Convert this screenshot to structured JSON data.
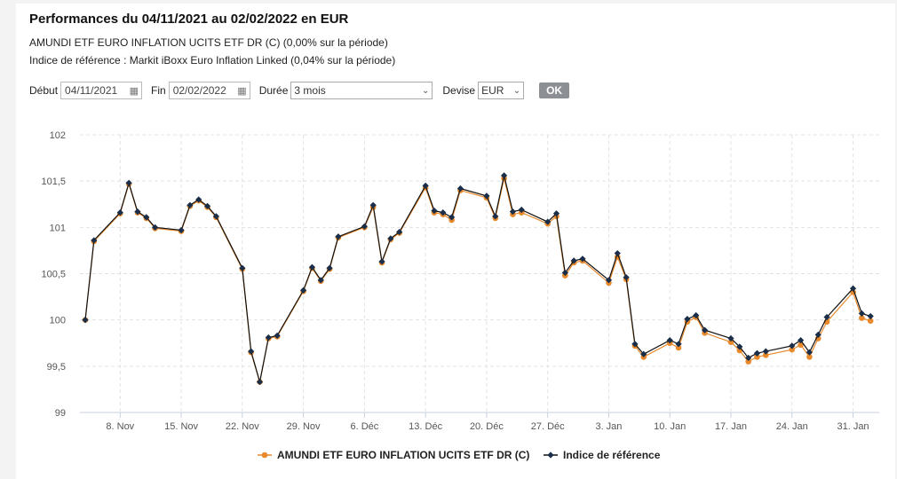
{
  "header": {
    "title": "Performances du 04/11/2021 au 02/02/2022 en EUR",
    "fund_line": "AMUNDI ETF EURO INFLATION UCITS ETF DR (C) (0,00% sur la période)",
    "index_line": "Indice de référence : Markit iBoxx Euro Inflation Linked (0,04% sur la période)"
  },
  "form": {
    "start_label": "Début",
    "start_value": "04/11/2021",
    "end_label": "Fin",
    "end_value": "02/02/2022",
    "duration_label": "Durée",
    "duration_value": "3 mois",
    "currency_label": "Devise",
    "currency_value": "EUR",
    "ok_label": "OK"
  },
  "chart_data": {
    "type": "line",
    "title": "",
    "xlabel": "",
    "ylabel": "",
    "ylim": [
      99,
      102
    ],
    "y_ticks": [
      "102",
      "101,5",
      "101",
      "100,5",
      "100",
      "99,5",
      "99"
    ],
    "x_ticks": [
      "8. Nov",
      "15. Nov",
      "22. Nov",
      "29. Nov",
      "6. Déc",
      "13. Déc",
      "20. Déc",
      "27. Déc",
      "3. Jan",
      "10. Jan",
      "17. Jan",
      "24. Jan",
      "31. Jan"
    ],
    "grid": true,
    "legend_position": "bottom",
    "colors": {
      "fund": "#e8892c",
      "index": "#1a2e4a",
      "grid": "#e3e3e3"
    },
    "series": [
      {
        "name": "AMUNDI ETF EURO INFLATION UCITS ETF DR (C)",
        "x": [
          "2021-11-04",
          "2021-11-05",
          "2021-11-08",
          "2021-11-09",
          "2021-11-10",
          "2021-11-11",
          "2021-11-12",
          "2021-11-15",
          "2021-11-16",
          "2021-11-17",
          "2021-11-18",
          "2021-11-19",
          "2021-11-22",
          "2021-11-23",
          "2021-11-24",
          "2021-11-25",
          "2021-11-26",
          "2021-11-29",
          "2021-11-30",
          "2021-12-01",
          "2021-12-02",
          "2021-12-03",
          "2021-12-06",
          "2021-12-07",
          "2021-12-08",
          "2021-12-09",
          "2021-12-10",
          "2021-12-13",
          "2021-12-14",
          "2021-12-15",
          "2021-12-16",
          "2021-12-17",
          "2021-12-20",
          "2021-12-21",
          "2021-12-22",
          "2021-12-23",
          "2021-12-24",
          "2021-12-27",
          "2021-12-28",
          "2021-12-29",
          "2021-12-30",
          "2021-12-31",
          "2022-01-03",
          "2022-01-04",
          "2022-01-05",
          "2022-01-06",
          "2022-01-07",
          "2022-01-10",
          "2022-01-11",
          "2022-01-12",
          "2022-01-13",
          "2022-01-14",
          "2022-01-17",
          "2022-01-18",
          "2022-01-19",
          "2022-01-20",
          "2022-01-21",
          "2022-01-24",
          "2022-01-25",
          "2022-01-26",
          "2022-01-27",
          "2022-01-28",
          "2022-01-31",
          "2022-02-01",
          "2022-02-02"
        ],
        "values": [
          100.0,
          100.85,
          101.15,
          101.47,
          101.16,
          101.1,
          100.99,
          100.96,
          101.23,
          101.29,
          101.22,
          101.11,
          100.55,
          99.65,
          99.33,
          99.8,
          99.82,
          100.31,
          100.56,
          100.42,
          100.55,
          100.89,
          101.0,
          101.22,
          100.62,
          100.87,
          100.94,
          101.43,
          101.16,
          101.14,
          101.08,
          101.4,
          101.32,
          101.1,
          101.53,
          101.14,
          101.16,
          101.04,
          101.12,
          100.48,
          100.62,
          100.64,
          100.4,
          100.68,
          100.44,
          99.72,
          99.6,
          99.75,
          99.7,
          99.98,
          100.03,
          99.86,
          99.76,
          99.67,
          99.55,
          99.6,
          99.62,
          99.68,
          99.73,
          99.6,
          99.8,
          99.98,
          100.3,
          100.02,
          99.99
        ]
      },
      {
        "name": "Indice de référence",
        "x": [
          "2021-11-04",
          "2021-11-05",
          "2021-11-08",
          "2021-11-09",
          "2021-11-10",
          "2021-11-11",
          "2021-11-12",
          "2021-11-15",
          "2021-11-16",
          "2021-11-17",
          "2021-11-18",
          "2021-11-19",
          "2021-11-22",
          "2021-11-23",
          "2021-11-24",
          "2021-11-25",
          "2021-11-26",
          "2021-11-29",
          "2021-11-30",
          "2021-12-01",
          "2021-12-02",
          "2021-12-03",
          "2021-12-06",
          "2021-12-07",
          "2021-12-08",
          "2021-12-09",
          "2021-12-10",
          "2021-12-13",
          "2021-12-14",
          "2021-12-15",
          "2021-12-16",
          "2021-12-17",
          "2021-12-20",
          "2021-12-21",
          "2021-12-22",
          "2021-12-23",
          "2021-12-24",
          "2021-12-27",
          "2021-12-28",
          "2021-12-29",
          "2021-12-30",
          "2021-12-31",
          "2022-01-03",
          "2022-01-04",
          "2022-01-05",
          "2022-01-06",
          "2022-01-07",
          "2022-01-10",
          "2022-01-11",
          "2022-01-12",
          "2022-01-13",
          "2022-01-14",
          "2022-01-17",
          "2022-01-18",
          "2022-01-19",
          "2022-01-20",
          "2022-01-21",
          "2022-01-24",
          "2022-01-25",
          "2022-01-26",
          "2022-01-27",
          "2022-01-28",
          "2022-01-31",
          "2022-02-01",
          "2022-02-02"
        ],
        "values": [
          100.0,
          100.86,
          101.16,
          101.48,
          101.17,
          101.11,
          101.0,
          100.97,
          101.24,
          101.3,
          101.23,
          101.12,
          100.56,
          99.66,
          99.33,
          99.81,
          99.83,
          100.32,
          100.57,
          100.43,
          100.56,
          100.9,
          101.01,
          101.24,
          100.63,
          100.88,
          100.95,
          101.45,
          101.18,
          101.16,
          101.11,
          101.42,
          101.34,
          101.12,
          101.56,
          101.17,
          101.19,
          101.06,
          101.15,
          100.51,
          100.64,
          100.66,
          100.43,
          100.72,
          100.46,
          99.74,
          99.63,
          99.78,
          99.74,
          100.01,
          100.05,
          99.89,
          99.8,
          99.71,
          99.59,
          99.64,
          99.66,
          99.72,
          99.78,
          99.65,
          99.84,
          100.03,
          100.34,
          100.07,
          100.04
        ]
      }
    ]
  }
}
